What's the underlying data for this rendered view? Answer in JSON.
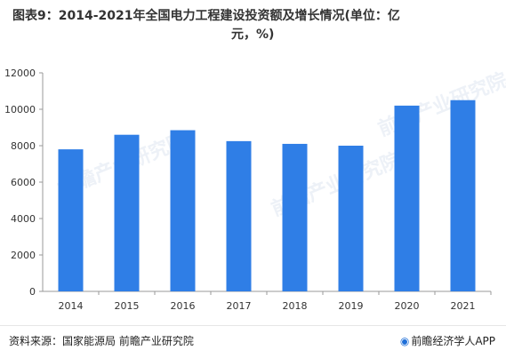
{
  "chart_data": {
    "type": "bar",
    "title_line1": "图表9：2014-2021年全国电力工程建设投资额及增长情况(单位：亿",
    "title_line2": "元，%)",
    "categories": [
      "2014",
      "2015",
      "2016",
      "2017",
      "2018",
      "2019",
      "2020",
      "2021"
    ],
    "values": [
      7800,
      8600,
      8850,
      8250,
      8100,
      8000,
      10200,
      10500
    ],
    "ylim": [
      0,
      12000
    ],
    "yticks": [
      "0",
      "2000",
      "4000",
      "6000",
      "8000",
      "10000",
      "12000"
    ],
    "bar_color": "#2f7ee6",
    "grid": false
  },
  "footer": {
    "source": "资料来源：国家能源局 前瞻产业研究院",
    "brand": "前瞻经济学人APP",
    "brand_icon": "brand-logo-icon"
  },
  "watermark": "前瞻产业研究院"
}
